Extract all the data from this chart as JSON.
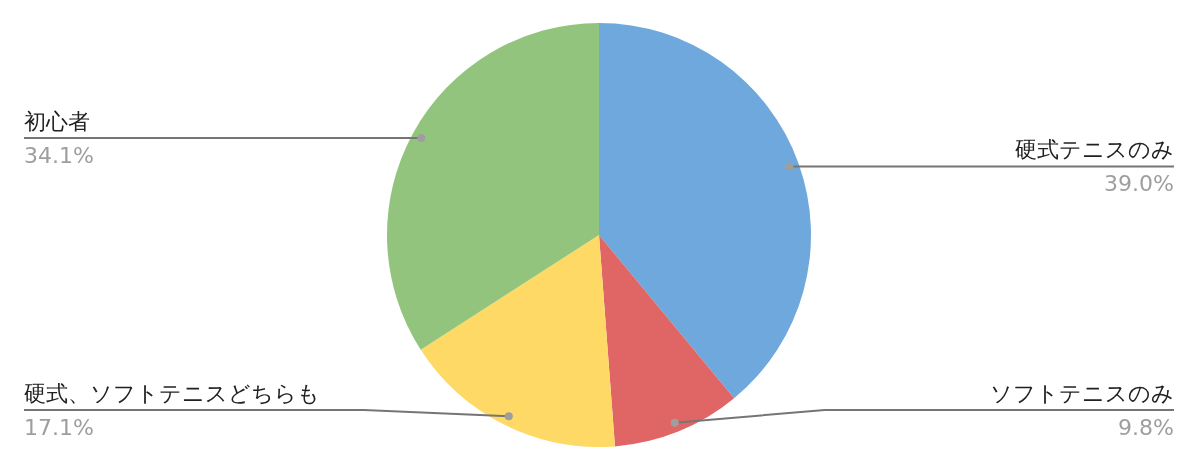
{
  "chart_data": {
    "type": "pie",
    "categories": [
      "硬式テニスのみ",
      "ソフトテニスのみ",
      "硬式、ソフトテニスどちらも",
      "初心者"
    ],
    "values": [
      39.0,
      9.8,
      17.1,
      34.1
    ],
    "colors": [
      "#6fa8dc",
      "#e06666",
      "#ffd966",
      "#93c47d"
    ],
    "value_labels": [
      "39.0%",
      "9.8%",
      "17.1%",
      "34.1%"
    ],
    "legend": false
  }
}
